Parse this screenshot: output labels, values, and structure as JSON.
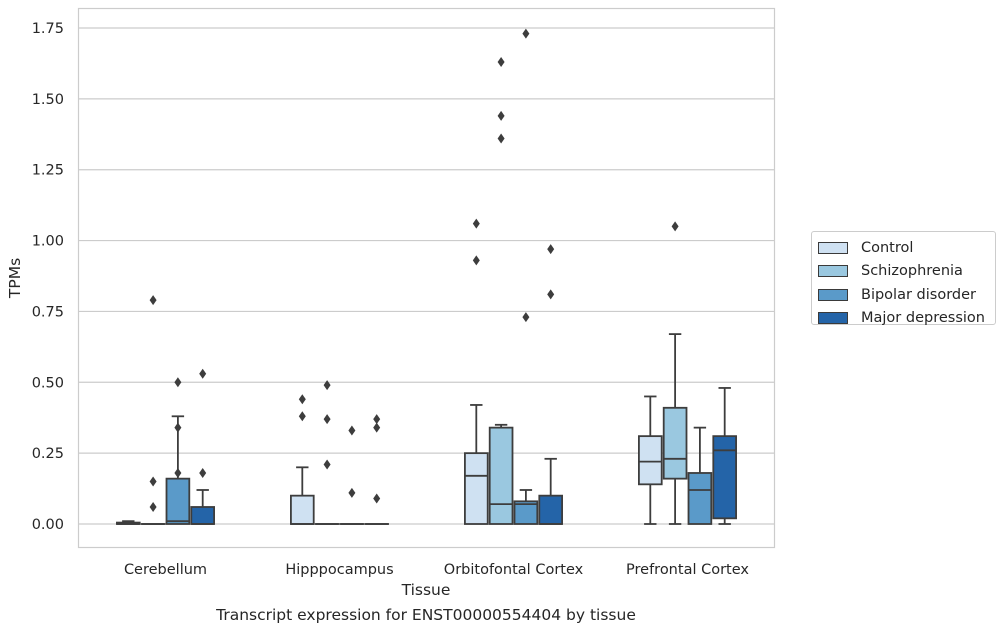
{
  "chart_data": {
    "type": "box",
    "title": "",
    "caption": "Transcript expression for ENST00000554404 by tissue",
    "xlabel": "Tissue",
    "ylabel": "TPMs",
    "ylim": [
      -0.085,
      1.82
    ],
    "yticks": [
      "0.00",
      "0.25",
      "0.50",
      "0.75",
      "1.00",
      "1.25",
      "1.50",
      "1.75"
    ],
    "ytick_values": [
      0,
      0.25,
      0.5,
      0.75,
      1.0,
      1.25,
      1.5,
      1.75
    ],
    "grid": "horizontal",
    "legend_position": "right",
    "categories": [
      "Cerebellum",
      "Hipppocampus",
      "Orbitofontal Cortex",
      "Prefrontal Cortex"
    ],
    "series": [
      {
        "name": "Control",
        "color": "#cfe1f2",
        "boxes": [
          {
            "q1": 0,
            "median": 0,
            "q3": 0.005,
            "whislo": 0,
            "whishi": 0.01,
            "fliers": []
          },
          {
            "q1": 0,
            "median": 0,
            "q3": 0.1,
            "whislo": 0,
            "whishi": 0.2,
            "fliers": [
              0.44,
              0.38
            ]
          },
          {
            "q1": 0,
            "median": 0.17,
            "q3": 0.25,
            "whislo": 0,
            "whishi": 0.42,
            "fliers": [
              1.06,
              0.93
            ]
          },
          {
            "q1": 0.14,
            "median": 0.22,
            "q3": 0.31,
            "whislo": 0,
            "whishi": 0.45,
            "fliers": []
          }
        ]
      },
      {
        "name": "Schizophrenia",
        "color": "#9ac8e0",
        "boxes": [
          {
            "q1": 0,
            "median": 0,
            "q3": 0,
            "whislo": 0,
            "whishi": 0,
            "fliers": [
              0.79,
              0.15,
              0.06
            ]
          },
          {
            "q1": 0,
            "median": 0,
            "q3": 0,
            "whislo": 0,
            "whishi": 0,
            "fliers": [
              0.49,
              0.37,
              0.21
            ]
          },
          {
            "q1": 0,
            "median": 0.07,
            "q3": 0.34,
            "whislo": 0,
            "whishi": 0.35,
            "fliers": [
              1.63,
              1.44,
              1.36
            ]
          },
          {
            "q1": 0.16,
            "median": 0.23,
            "q3": 0.41,
            "whislo": 0,
            "whishi": 0.67,
            "fliers": [
              1.05
            ]
          }
        ]
      },
      {
        "name": "Bipolar disorder",
        "color": "#5a9ac9",
        "boxes": [
          {
            "q1": 0,
            "median": 0.01,
            "q3": 0.16,
            "whislo": 0,
            "whishi": 0.38,
            "fliers": [
              0.5,
              0.34,
              0.18
            ]
          },
          {
            "q1": 0,
            "median": 0,
            "q3": 0,
            "whislo": 0,
            "whishi": 0,
            "fliers": [
              0.33,
              0.11
            ]
          },
          {
            "q1": 0,
            "median": 0.07,
            "q3": 0.08,
            "whislo": 0,
            "whishi": 0.12,
            "fliers": [
              1.73,
              0.73
            ]
          },
          {
            "q1": 0,
            "median": 0.12,
            "q3": 0.18,
            "whislo": 0,
            "whishi": 0.34,
            "fliers": []
          }
        ]
      },
      {
        "name": "Major depression",
        "color": "#2464a8",
        "boxes": [
          {
            "q1": 0,
            "median": 0,
            "q3": 0.06,
            "whislo": 0,
            "whishi": 0.12,
            "fliers": [
              0.53,
              0.18
            ]
          },
          {
            "q1": 0,
            "median": 0,
            "q3": 0,
            "whislo": 0,
            "whishi": 0,
            "fliers": [
              0.37,
              0.34,
              0.09
            ]
          },
          {
            "q1": 0,
            "median": 0,
            "q3": 0.1,
            "whislo": 0,
            "whishi": 0.23,
            "fliers": [
              0.97,
              0.81
            ]
          },
          {
            "q1": 0.02,
            "median": 0.26,
            "q3": 0.31,
            "whislo": 0,
            "whishi": 0.48,
            "fliers": []
          }
        ]
      }
    ]
  }
}
